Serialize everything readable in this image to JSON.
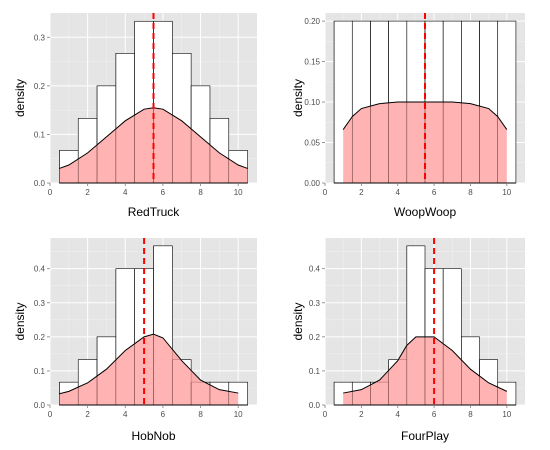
{
  "style": {
    "panel_bg": "#e5e5e5",
    "grid_major": "#ffffff",
    "grid_minor": "#f2f2f2",
    "bar_fill": "#ffffff",
    "bar_stroke": "#000000",
    "density_fill": "#ff9999",
    "density_stroke": "#000000",
    "mean_line": "#ff0000"
  },
  "chart_data": [
    {
      "type": "bar",
      "xlabel": "RedTruck",
      "ylabel": "density",
      "xlim": [
        0,
        11
      ],
      "ylim": [
        0,
        0.35
      ],
      "x_ticks": [
        "0",
        "2",
        "4",
        "6",
        "8",
        "10"
      ],
      "y_ticks": [
        "0.0",
        "0.1",
        "0.2",
        "0.3"
      ],
      "grid": true,
      "histogram": {
        "x": [
          1,
          2,
          3,
          4,
          5,
          6,
          7,
          8,
          9,
          10
        ],
        "density": [
          0.067,
          0.133,
          0.2,
          0.267,
          0.333,
          0.333,
          0.267,
          0.2,
          0.133,
          0.067
        ]
      },
      "density_curve": {
        "x": [
          0.5,
          1,
          2,
          3,
          4,
          5,
          5.5,
          6,
          7,
          8,
          9,
          10,
          10.5
        ],
        "y": [
          0.03,
          0.037,
          0.062,
          0.095,
          0.128,
          0.152,
          0.155,
          0.152,
          0.128,
          0.095,
          0.062,
          0.037,
          0.03
        ]
      },
      "mean": 5.5
    },
    {
      "type": "bar",
      "xlabel": "WoopWoop",
      "ylabel": "density",
      "xlim": [
        0,
        11
      ],
      "ylim": [
        0,
        0.21
      ],
      "x_ticks": [
        "0",
        "2",
        "4",
        "6",
        "8",
        "10"
      ],
      "y_ticks": [
        "0.00",
        "0.05",
        "0.10",
        "0.15",
        "0.20"
      ],
      "grid": true,
      "histogram": {
        "x": [
          1,
          2,
          3,
          4,
          5,
          6,
          7,
          8,
          9,
          10
        ],
        "density": [
          0.2,
          0.2,
          0.2,
          0.2,
          0.2,
          0.2,
          0.2,
          0.2,
          0.2,
          0.2
        ]
      },
      "density_curve": {
        "x": [
          1,
          1.5,
          2,
          3,
          4,
          5,
          5.5,
          6,
          7,
          8,
          9,
          9.5,
          10
        ],
        "y": [
          0.066,
          0.082,
          0.092,
          0.098,
          0.1,
          0.1,
          0.1,
          0.1,
          0.1,
          0.098,
          0.092,
          0.082,
          0.066
        ]
      },
      "mean": 5.5
    },
    {
      "type": "bar",
      "xlabel": "HobNob",
      "ylabel": "density",
      "xlim": [
        0,
        11
      ],
      "ylim": [
        0,
        0.49
      ],
      "x_ticks": [
        "0",
        "2",
        "4",
        "6",
        "8",
        "10"
      ],
      "y_ticks": [
        "0.0",
        "0.1",
        "0.2",
        "0.3",
        "0.4"
      ],
      "grid": true,
      "histogram": {
        "x": [
          1,
          2,
          3,
          4,
          5,
          6,
          7,
          8,
          9,
          10
        ],
        "density": [
          0.067,
          0.133,
          0.2,
          0.4,
          0.4,
          0.467,
          0.133,
          0.067,
          0.067,
          0.067
        ]
      },
      "density_curve": {
        "x": [
          0.5,
          1,
          2,
          3,
          4,
          5,
          5.5,
          6,
          7,
          8,
          9,
          10
        ],
        "y": [
          0.033,
          0.04,
          0.065,
          0.105,
          0.16,
          0.2,
          0.208,
          0.197,
          0.13,
          0.073,
          0.045,
          0.035
        ]
      },
      "mean": 5.0
    },
    {
      "type": "bar",
      "xlabel": "FourPlay",
      "ylabel": "density",
      "xlim": [
        0,
        11
      ],
      "ylim": [
        0,
        0.49
      ],
      "x_ticks": [
        "0",
        "2",
        "4",
        "6",
        "8",
        "10"
      ],
      "y_ticks": [
        "0.0",
        "0.1",
        "0.2",
        "0.3",
        "0.4"
      ],
      "grid": true,
      "histogram": {
        "x": [
          1,
          2,
          3,
          4,
          5,
          6,
          7,
          8,
          9,
          10
        ],
        "density": [
          0.067,
          0.067,
          0.067,
          0.133,
          0.467,
          0.4,
          0.4,
          0.2,
          0.133,
          0.067
        ]
      },
      "density_curve": {
        "x": [
          1,
          2,
          3,
          4,
          4.5,
          5,
          6,
          7,
          8,
          9,
          10
        ],
        "y": [
          0.035,
          0.045,
          0.073,
          0.13,
          0.175,
          0.2,
          0.2,
          0.16,
          0.105,
          0.065,
          0.04
        ]
      },
      "mean": 6.0
    }
  ]
}
